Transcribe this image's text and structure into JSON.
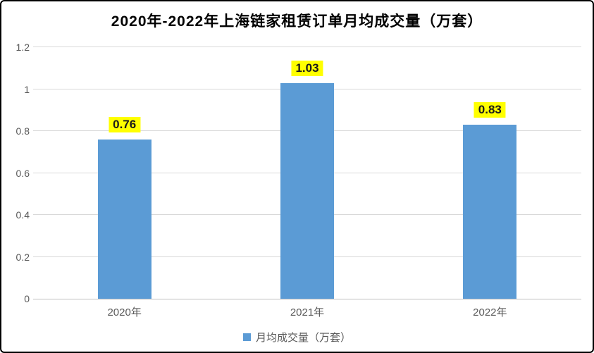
{
  "chart_data": {
    "type": "bar",
    "title": "2020年-2022年上海链家租赁订单月均成交量（万套）",
    "categories": [
      "2020年",
      "2021年",
      "2022年"
    ],
    "values": [
      0.76,
      1.03,
      0.83
    ],
    "data_labels": [
      "0.76",
      "1.03",
      "0.83"
    ],
    "yticks": [
      "0",
      "0.2",
      "0.4",
      "0.6",
      "0.8",
      "1",
      "1.2"
    ],
    "ylim": [
      0,
      1.2
    ],
    "grid": "horizontal",
    "legend_position": "bottom",
    "legend": [
      "月均成交量（万套）"
    ],
    "colors": {
      "bar": "#5b9bd5",
      "value_label_background": "#ffff00",
      "value_label_text": "#1a1a1a",
      "gridline": "#d9d9d9",
      "axis_line": "#bfbfbf",
      "tick_text": "#595959",
      "title_text": "#000000",
      "legend_text": "#595959"
    }
  }
}
